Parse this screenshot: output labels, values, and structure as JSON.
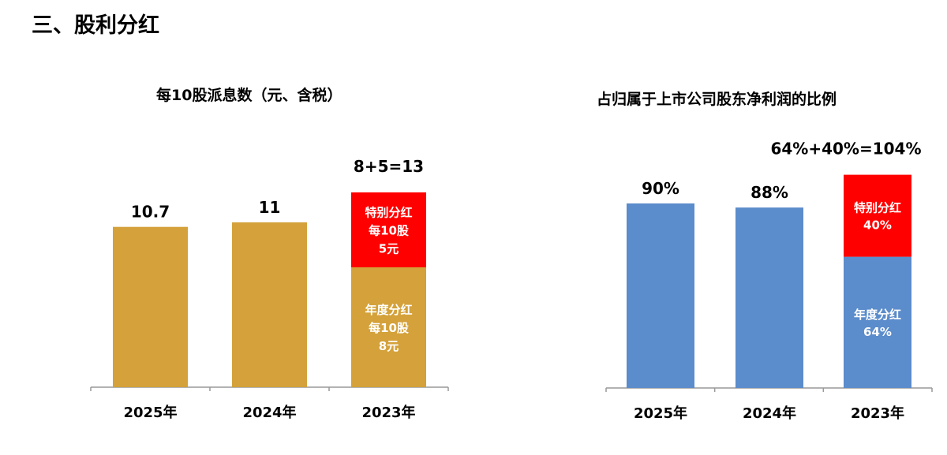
{
  "page_title": "三、股利分红",
  "chart_data": [
    {
      "type": "bar",
      "stacked": true,
      "title": "每10股派息数（元、含税）",
      "categories": [
        "2025年",
        "2024年",
        "2023年"
      ],
      "values": [
        10.7,
        11,
        13
      ],
      "value_labels": [
        "10.7",
        "11",
        "8+5=13"
      ],
      "stack_2023": [
        {
          "name": "年度分红",
          "value": 8,
          "label": [
            "年度分红",
            "每10股",
            "8元"
          ],
          "color": "#D4A13A"
        },
        {
          "name": "特别分红",
          "value": 5,
          "label": [
            "特别分红",
            "每10股",
            "5元"
          ],
          "color": "#FF0000"
        }
      ],
      "bar_color": "#D4A13A",
      "ylim": [
        0,
        13
      ],
      "grid": false
    },
    {
      "type": "bar",
      "stacked": true,
      "title": "占归属于上市公司股东净利润的比例",
      "categories": [
        "2025年",
        "2024年",
        "2023年"
      ],
      "values": [
        90,
        88,
        104
      ],
      "value_labels": [
        "90%",
        "88%",
        "64%+40%=104%"
      ],
      "stack_2023": [
        {
          "name": "年度分红",
          "value": 64,
          "label": [
            "年度分红",
            "64%"
          ],
          "color": "#5B8CCB"
        },
        {
          "name": "特别分红",
          "value": 40,
          "label": [
            "特别分红",
            "40%"
          ],
          "color": "#FF0000"
        }
      ],
      "bar_color": "#5B8CCB",
      "ylim": [
        0,
        104
      ],
      "grid": false
    }
  ]
}
